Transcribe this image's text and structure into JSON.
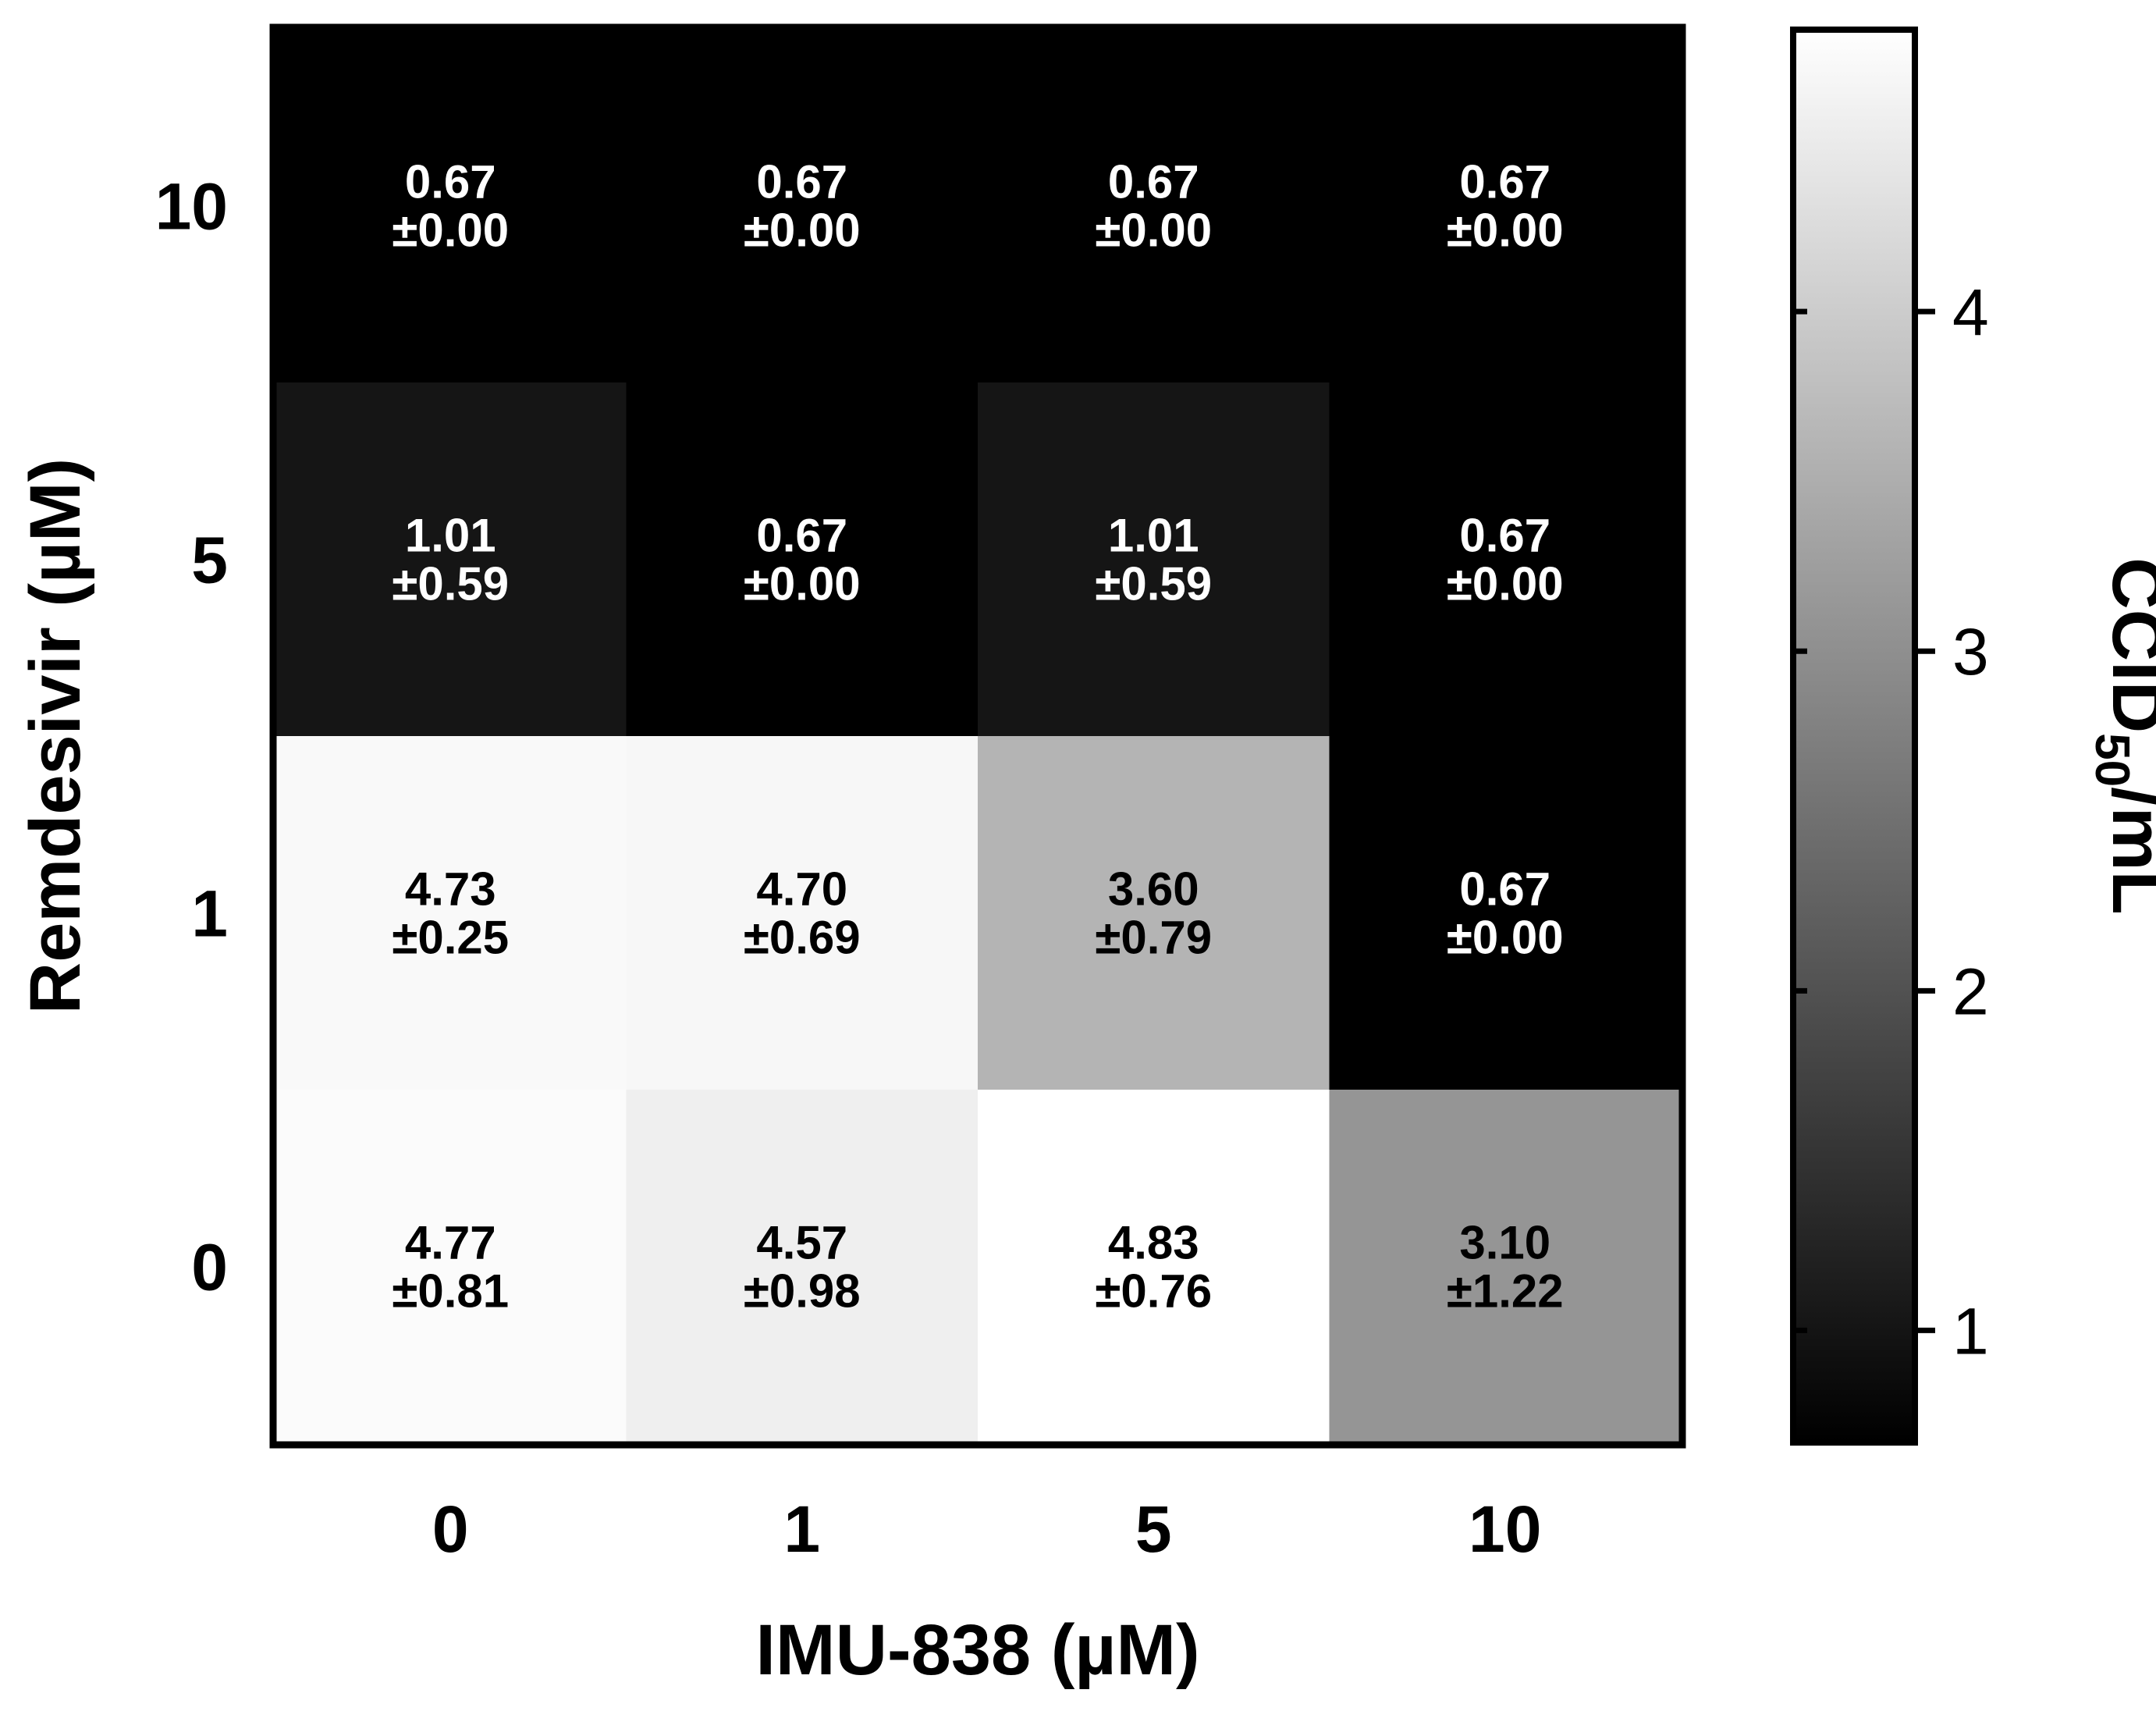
{
  "chart_data": {
    "type": "heatmap",
    "xlabel": "IMU-838 (µM)",
    "ylabel": "Remdesivir (µM)",
    "x_categories": [
      "0",
      "1",
      "5",
      "10"
    ],
    "y_categories": [
      "10",
      "5",
      "1",
      "0"
    ],
    "values": [
      [
        0.67,
        0.67,
        0.67,
        0.67
      ],
      [
        1.01,
        0.67,
        1.01,
        0.67
      ],
      [
        4.73,
        4.7,
        3.6,
        0.67
      ],
      [
        4.77,
        4.57,
        4.83,
        3.1
      ]
    ],
    "cell_labels": [
      [
        {
          "mean": "0.67",
          "sd": "±0.00"
        },
        {
          "mean": "0.67",
          "sd": "±0.00"
        },
        {
          "mean": "0.67",
          "sd": "±0.00"
        },
        {
          "mean": "0.67",
          "sd": "±0.00"
        }
      ],
      [
        {
          "mean": "1.01",
          "sd": "±0.59"
        },
        {
          "mean": "0.67",
          "sd": "±0.00"
        },
        {
          "mean": "1.01",
          "sd": "±0.59"
        },
        {
          "mean": "0.67",
          "sd": "±0.00"
        }
      ],
      [
        {
          "mean": "4.73",
          "sd": "±0.25"
        },
        {
          "mean": "4.70",
          "sd": "±0.69"
        },
        {
          "mean": "3.60",
          "sd": "±0.79"
        },
        {
          "mean": "0.67",
          "sd": "±0.00"
        }
      ],
      [
        {
          "mean": "4.77",
          "sd": "±0.81"
        },
        {
          "mean": "4.57",
          "sd": "±0.98"
        },
        {
          "mean": "4.83",
          "sd": "±0.76"
        },
        {
          "mean": "3.10",
          "sd": "±1.22"
        }
      ]
    ],
    "colorbar": {
      "label_main": "CCID",
      "label_sub": "50",
      "label_tail": "/mL",
      "range": [
        0.67,
        4.83
      ],
      "ticks": [
        1,
        2,
        3,
        4
      ],
      "tick_labels": [
        "1",
        "2",
        "3",
        "4"
      ],
      "color_low": "#000000",
      "color_high": "#ffffff"
    },
    "text_color_dark": "#000000",
    "text_color_light": "#ffffff"
  }
}
